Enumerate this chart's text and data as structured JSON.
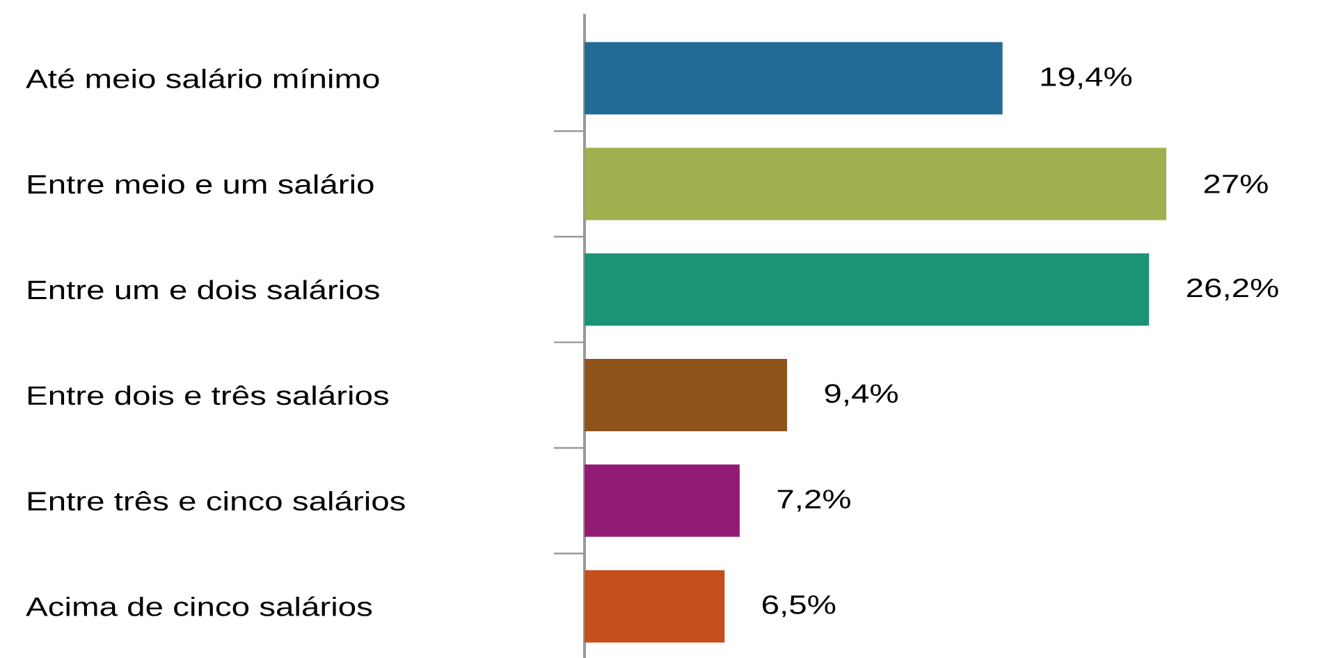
{
  "chart_data": {
    "type": "bar",
    "orientation": "horizontal",
    "categories": [
      "Até meio salário mínimo",
      "Entre meio e um salário",
      "Entre um e dois salários",
      "Entre dois e três salários",
      "Entre três e cinco salários",
      "Acima de cinco salários"
    ],
    "values": [
      19.4,
      27,
      26.2,
      9.4,
      7.2,
      6.5
    ],
    "colors": [
      "#1f6b94",
      "#9fb04e",
      "#1a9475",
      "#8f531c",
      "#921c74",
      "#c44f1c"
    ],
    "value_labels": [
      "19,4%",
      "27%",
      "26,2%",
      "9,4%",
      "7,2%",
      "6,5%"
    ]
  }
}
